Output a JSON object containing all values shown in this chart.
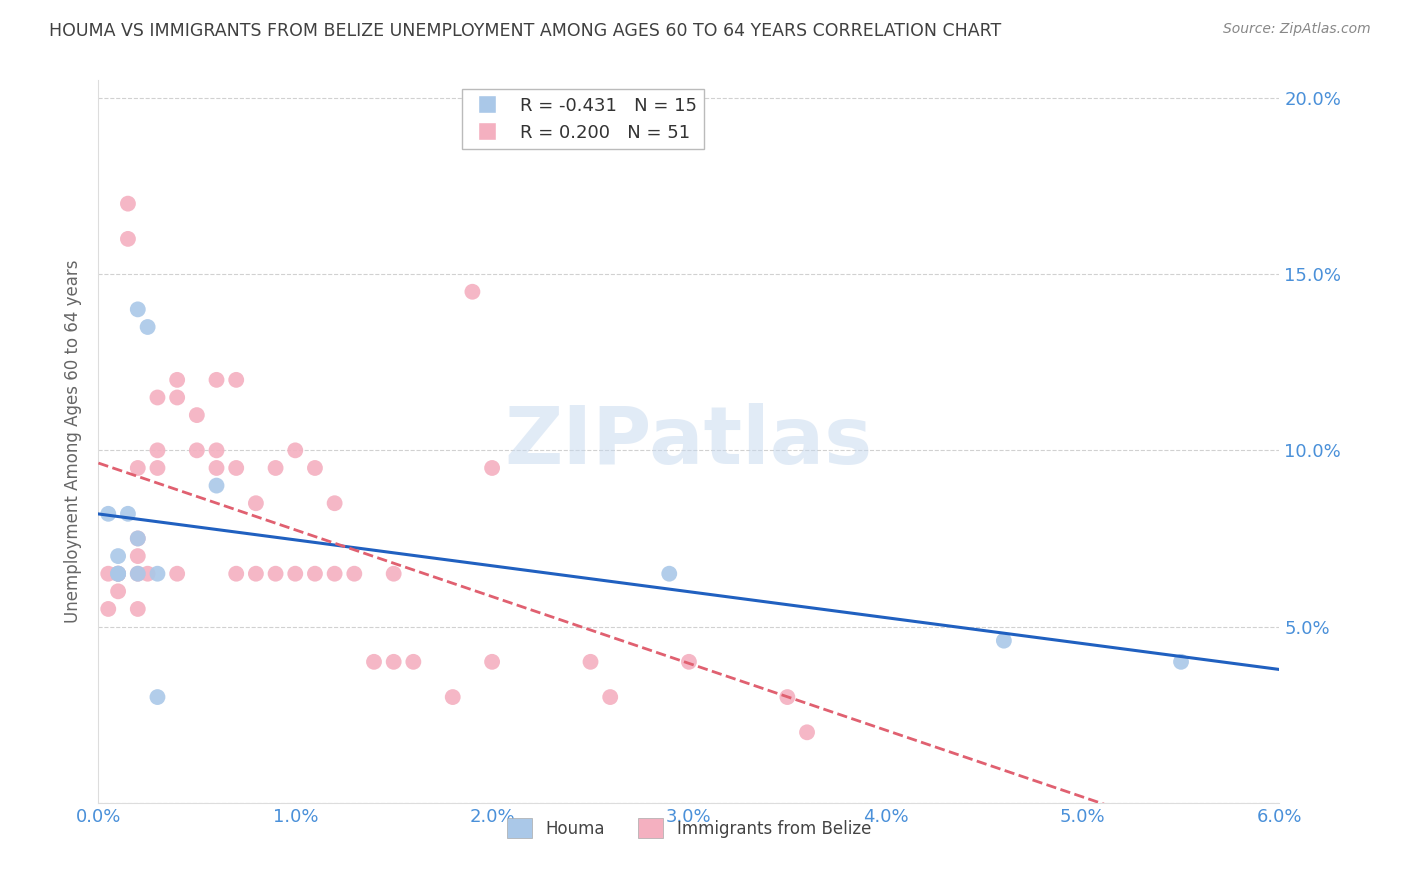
{
  "title": "HOUMA VS IMMIGRANTS FROM BELIZE UNEMPLOYMENT AMONG AGES 60 TO 64 YEARS CORRELATION CHART",
  "source": "Source: ZipAtlas.com",
  "ylabel": "Unemployment Among Ages 60 to 64 years",
  "watermark": "ZIPatlas",
  "legend_blue_r": "R = -0.431",
  "legend_blue_n": "N = 15",
  "legend_pink_r": "R = 0.200",
  "legend_pink_n": "N = 51",
  "blue_label": "Houma",
  "pink_label": "Immigrants from Belize",
  "xlim": [
    0.0,
    0.06
  ],
  "ylim": [
    0.0,
    0.205
  ],
  "xticks": [
    0.0,
    0.01,
    0.02,
    0.03,
    0.04,
    0.05,
    0.06
  ],
  "xtick_labels": [
    "0.0%",
    "1.0%",
    "2.0%",
    "3.0%",
    "4.0%",
    "5.0%",
    "6.0%"
  ],
  "yticks": [
    0.0,
    0.05,
    0.1,
    0.15,
    0.2
  ],
  "ytick_labels": [
    "",
    "5.0%",
    "10.0%",
    "15.0%",
    "20.0%"
  ],
  "blue_color": "#aac8e8",
  "pink_color": "#f4b0c0",
  "trend_blue_color": "#2060c0",
  "trend_pink_color": "#e06070",
  "blue_x": [
    0.0015,
    0.0005,
    0.0025,
    0.002,
    0.003,
    0.002,
    0.002,
    0.001,
    0.001,
    0.003,
    0.001,
    0.006,
    0.029,
    0.046,
    0.055
  ],
  "blue_y": [
    0.082,
    0.082,
    0.135,
    0.14,
    0.03,
    0.065,
    0.075,
    0.07,
    0.065,
    0.065,
    0.065,
    0.09,
    0.065,
    0.046,
    0.04
  ],
  "pink_x": [
    0.0005,
    0.0005,
    0.001,
    0.001,
    0.001,
    0.0015,
    0.0015,
    0.002,
    0.002,
    0.002,
    0.002,
    0.002,
    0.0025,
    0.003,
    0.003,
    0.003,
    0.004,
    0.004,
    0.004,
    0.005,
    0.005,
    0.006,
    0.006,
    0.006,
    0.007,
    0.007,
    0.007,
    0.008,
    0.008,
    0.009,
    0.009,
    0.01,
    0.01,
    0.011,
    0.011,
    0.012,
    0.012,
    0.013,
    0.014,
    0.015,
    0.015,
    0.016,
    0.018,
    0.019,
    0.02,
    0.02,
    0.025,
    0.026,
    0.03,
    0.035,
    0.036
  ],
  "pink_y": [
    0.065,
    0.055,
    0.065,
    0.065,
    0.06,
    0.17,
    0.16,
    0.095,
    0.075,
    0.07,
    0.065,
    0.055,
    0.065,
    0.115,
    0.1,
    0.095,
    0.12,
    0.115,
    0.065,
    0.11,
    0.1,
    0.12,
    0.1,
    0.095,
    0.12,
    0.095,
    0.065,
    0.085,
    0.065,
    0.095,
    0.065,
    0.1,
    0.065,
    0.095,
    0.065,
    0.085,
    0.065,
    0.065,
    0.04,
    0.065,
    0.04,
    0.04,
    0.03,
    0.145,
    0.095,
    0.04,
    0.04,
    0.03,
    0.04,
    0.03,
    0.02
  ],
  "background_color": "#ffffff",
  "grid_color": "#cccccc",
  "title_color": "#404040",
  "axis_color": "#4a90d9",
  "marker_size": 130
}
